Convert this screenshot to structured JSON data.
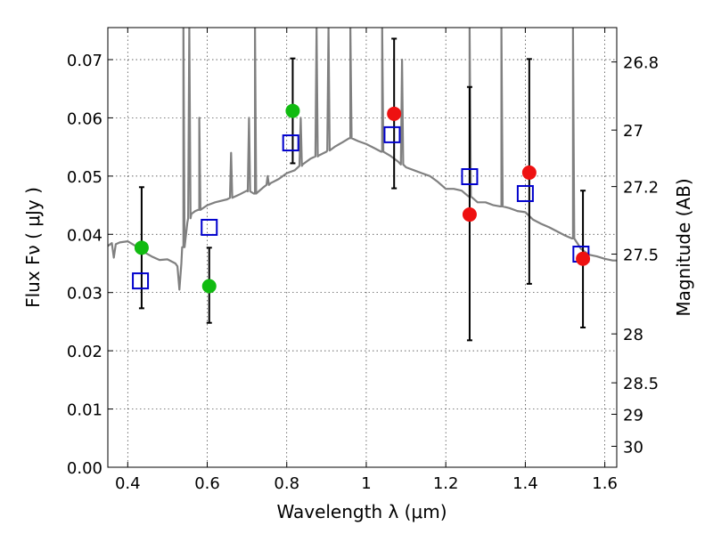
{
  "chart_data": {
    "type": "scatter",
    "xlabel": "Wavelength  λ (μm)",
    "ylabel": "Flux  Fν  ( μJy )",
    "y2label": "Magnitude (AB)",
    "xlim": [
      0.35,
      1.63
    ],
    "ylim": [
      0.0,
      0.0755
    ],
    "grid": true,
    "xticks": [
      0.4,
      0.6,
      0.8,
      1.0,
      1.2,
      1.4,
      1.6
    ],
    "xtick_labels": [
      "0.4",
      "0.6",
      "0.8",
      "1",
      "1.2",
      "1.4",
      "1.6"
    ],
    "yticks": [
      0.0,
      0.01,
      0.02,
      0.03,
      0.04,
      0.05,
      0.06,
      0.07
    ],
    "ytick_labels": [
      "0.00",
      "0.01",
      "0.02",
      "0.03",
      "0.04",
      "0.05",
      "0.06",
      "0.07"
    ],
    "y2ticks": [
      {
        "label": "26.8",
        "flux": 0.0696
      },
      {
        "label": "27",
        "flux": 0.0579
      },
      {
        "label": "27.2",
        "flux": 0.0482
      },
      {
        "label": "27.5",
        "flux": 0.0366
      },
      {
        "label": "28",
        "flux": 0.0229
      },
      {
        "label": "28.5",
        "flux": 0.0145
      },
      {
        "label": "29",
        "flux": 0.0091
      },
      {
        "label": "30",
        "flux": 0.0036
      }
    ],
    "colors": {
      "model": "#808080",
      "green": "#11bb11",
      "red": "#ee1111",
      "squares": "#0000cc",
      "errorbars": "#000000"
    },
    "series": [
      {
        "kind": "line",
        "color": "model",
        "points": [
          [
            0.35,
            0.038
          ],
          [
            0.36,
            0.0385
          ],
          [
            0.365,
            0.036
          ],
          [
            0.37,
            0.0383
          ],
          [
            0.38,
            0.0386
          ],
          [
            0.4,
            0.0388
          ],
          [
            0.42,
            0.038
          ],
          [
            0.44,
            0.037
          ],
          [
            0.46,
            0.0362
          ],
          [
            0.48,
            0.0356
          ],
          [
            0.5,
            0.0357
          ],
          [
            0.52,
            0.035
          ],
          [
            0.525,
            0.0345
          ],
          [
            0.53,
            0.0305
          ],
          [
            0.535,
            0.035
          ],
          [
            0.54,
            0.0378
          ],
          [
            0.55,
            0.042
          ],
          [
            0.56,
            0.0435
          ],
          [
            0.57,
            0.044
          ],
          [
            0.58,
            0.0442
          ],
          [
            0.6,
            0.045
          ],
          [
            0.62,
            0.0455
          ],
          [
            0.65,
            0.046
          ],
          [
            0.68,
            0.0468
          ],
          [
            0.7,
            0.0475
          ],
          [
            0.72,
            0.047
          ],
          [
            0.74,
            0.048
          ],
          [
            0.76,
            0.0488
          ],
          [
            0.78,
            0.0495
          ],
          [
            0.8,
            0.0505
          ],
          [
            0.82,
            0.051
          ],
          [
            0.84,
            0.052
          ],
          [
            0.86,
            0.053
          ],
          [
            0.88,
            0.0535
          ],
          [
            0.9,
            0.0542
          ],
          [
            0.92,
            0.055
          ],
          [
            0.94,
            0.0558
          ],
          [
            0.96,
            0.0565
          ],
          [
            0.98,
            0.056
          ],
          [
            1.0,
            0.0555
          ],
          [
            1.02,
            0.0548
          ],
          [
            1.04,
            0.0542
          ],
          [
            1.06,
            0.0535
          ],
          [
            1.08,
            0.0525
          ],
          [
            1.1,
            0.0515
          ],
          [
            1.12,
            0.051
          ],
          [
            1.14,
            0.0505
          ],
          [
            1.16,
            0.05
          ],
          [
            1.18,
            0.049
          ],
          [
            1.2,
            0.0478
          ],
          [
            1.22,
            0.0478
          ],
          [
            1.24,
            0.0475
          ],
          [
            1.26,
            0.0465
          ],
          [
            1.28,
            0.0455
          ],
          [
            1.3,
            0.0455
          ],
          [
            1.32,
            0.045
          ],
          [
            1.34,
            0.0448
          ],
          [
            1.36,
            0.0445
          ],
          [
            1.38,
            0.044
          ],
          [
            1.4,
            0.0438
          ],
          [
            1.42,
            0.0425
          ],
          [
            1.44,
            0.0418
          ],
          [
            1.46,
            0.0412
          ],
          [
            1.48,
            0.0405
          ],
          [
            1.5,
            0.0398
          ],
          [
            1.52,
            0.0393
          ],
          [
            1.54,
            0.0375
          ],
          [
            1.56,
            0.0365
          ],
          [
            1.58,
            0.0362
          ],
          [
            1.6,
            0.0358
          ],
          [
            1.62,
            0.0355
          ],
          [
            1.63,
            0.0355
          ]
        ],
        "emission_lines": [
          {
            "x": 0.54,
            "peak": 0.0755
          },
          {
            "x": 0.555,
            "peak": 0.0755
          },
          {
            "x": 0.58,
            "peak": 0.06
          },
          {
            "x": 0.66,
            "peak": 0.054
          },
          {
            "x": 0.705,
            "peak": 0.06
          },
          {
            "x": 0.72,
            "peak": 0.0755
          },
          {
            "x": 0.752,
            "peak": 0.05
          },
          {
            "x": 0.835,
            "peak": 0.06
          },
          {
            "x": 0.875,
            "peak": 0.0755
          },
          {
            "x": 0.905,
            "peak": 0.0755
          },
          {
            "x": 0.96,
            "peak": 0.0755
          },
          {
            "x": 1.04,
            "peak": 0.0755
          },
          {
            "x": 1.09,
            "peak": 0.07
          },
          {
            "x": 1.26,
            "peak": 0.0755
          },
          {
            "x": 1.34,
            "peak": 0.0755
          },
          {
            "x": 1.52,
            "peak": 0.0755
          }
        ]
      },
      {
        "kind": "points",
        "marker": "circle",
        "color": "green",
        "points": [
          [
            0.435,
            0.0377
          ],
          [
            0.605,
            0.0311
          ],
          [
            0.815,
            0.0612
          ]
        ]
      },
      {
        "kind": "points",
        "marker": "circle",
        "color": "red",
        "points": [
          [
            1.07,
            0.0607
          ],
          [
            1.26,
            0.0434
          ],
          [
            1.41,
            0.0506
          ],
          [
            1.545,
            0.0358
          ]
        ]
      },
      {
        "kind": "points",
        "marker": "square",
        "color": "squares",
        "points": [
          [
            0.432,
            0.032
          ],
          [
            0.605,
            0.0412
          ],
          [
            0.81,
            0.0557
          ],
          [
            1.065,
            0.0571
          ],
          [
            1.26,
            0.0499
          ],
          [
            1.4,
            0.047
          ],
          [
            1.54,
            0.0366
          ]
        ]
      },
      {
        "kind": "errorbars",
        "color": "errorbars",
        "bars": [
          {
            "x": 0.435,
            "low": 0.0273,
            "high": 0.0481
          },
          {
            "x": 0.605,
            "low": 0.0248,
            "high": 0.0377
          },
          {
            "x": 0.815,
            "low": 0.0522,
            "high": 0.0702
          },
          {
            "x": 1.07,
            "low": 0.0479,
            "high": 0.0736
          },
          {
            "x": 1.26,
            "low": 0.0218,
            "high": 0.0653
          },
          {
            "x": 1.41,
            "low": 0.0315,
            "high": 0.0701
          },
          {
            "x": 1.545,
            "low": 0.024,
            "high": 0.0475
          }
        ]
      }
    ]
  }
}
